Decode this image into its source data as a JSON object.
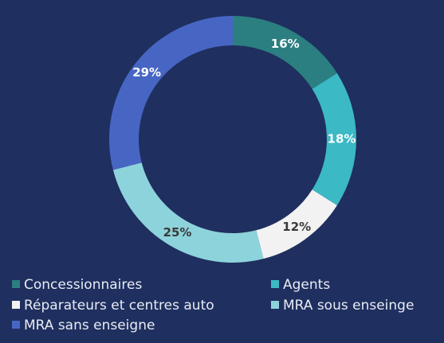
{
  "chart_data": {
    "type": "donut",
    "categories": [
      "Concessionnaires",
      "Agents",
      "Réparateurs et centres auto",
      "MRA sous enseinge",
      "MRA sans enseigne"
    ],
    "values": [
      16,
      18,
      12,
      25,
      29
    ],
    "value_labels": [
      "16%",
      "18%",
      "12%",
      "25%",
      "29%"
    ],
    "colors": [
      "#2b7f80",
      "#3bb9c4",
      "#f2f2f2",
      "#8dd3db",
      "#4766c4"
    ],
    "label_colors": [
      "#ffffff",
      "#ffffff",
      "#3a3a3a",
      "#3a3a3a",
      "#ffffff"
    ],
    "legend": "bottom"
  }
}
